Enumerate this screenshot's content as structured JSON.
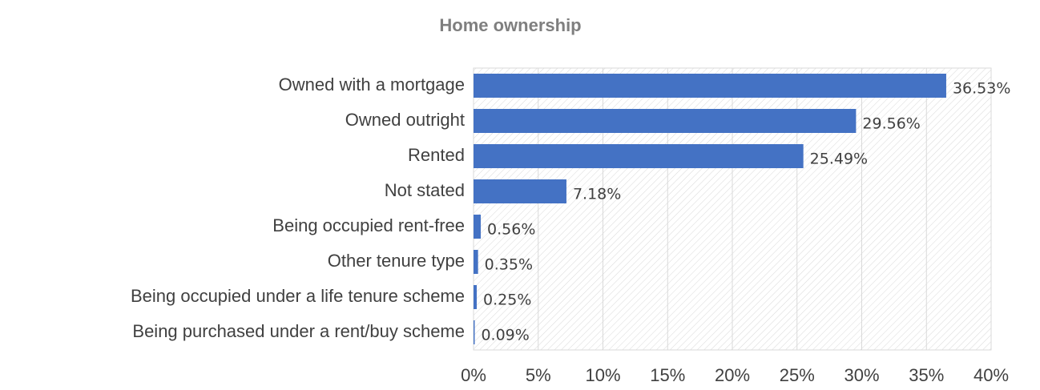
{
  "chart_data": {
    "type": "bar",
    "orientation": "horizontal",
    "title": "Home ownership",
    "categories": [
      "Owned with a mortgage",
      "Owned outright",
      "Rented",
      "Not stated",
      "Being occupied rent-free",
      "Other tenure type",
      "Being occupied under a life tenure scheme",
      "Being purchased under a rent/buy scheme"
    ],
    "values": [
      36.53,
      29.56,
      25.49,
      7.18,
      0.56,
      0.35,
      0.25,
      0.09
    ],
    "value_labels": [
      "36.53%",
      "29.56%",
      "25.49%",
      "7.18%",
      "0.56%",
      "0.35%",
      "0.25%",
      "0.09%"
    ],
    "color": "#4472c4",
    "xlim": [
      0,
      40
    ],
    "xticks": [
      {
        "value": 0,
        "label": "0%"
      },
      {
        "value": 5,
        "label": "5%"
      },
      {
        "value": 10,
        "label": "10%"
      },
      {
        "value": 15,
        "label": "15%"
      },
      {
        "value": 20,
        "label": "20%"
      },
      {
        "value": 25,
        "label": "25%"
      },
      {
        "value": 30,
        "label": "30%"
      },
      {
        "value": 35,
        "label": "35%"
      },
      {
        "value": 40,
        "label": "40%"
      }
    ],
    "grid": true
  }
}
